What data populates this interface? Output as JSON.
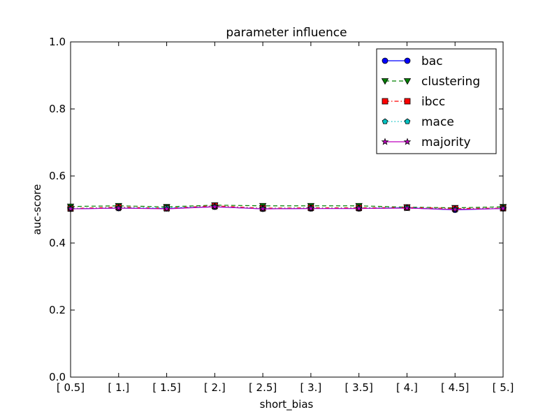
{
  "chart_data": {
    "type": "line",
    "title": "parameter influence",
    "xlabel": "short_bias",
    "ylabel": "auc-score",
    "ylim": [
      0,
      1
    ],
    "yticks": [
      "0.0",
      "0.2",
      "0.4",
      "0.6",
      "0.8",
      "1.0"
    ],
    "categories": [
      "[ 0.5]",
      "[ 1.]",
      "[ 1.5]",
      "[ 2.]",
      "[ 2.5]",
      "[ 3.]",
      "[ 3.5]",
      "[ 4.]",
      "[ 4.5]",
      "[ 5.]"
    ],
    "grid": false,
    "legend_position": "top-right",
    "series": [
      {
        "name": "bac",
        "color": "#0000ff",
        "marker": "circle",
        "dash": "solid",
        "values": [
          0.502,
          0.504,
          0.503,
          0.508,
          0.502,
          0.503,
          0.503,
          0.505,
          0.499,
          0.503
        ]
      },
      {
        "name": "clustering",
        "color": "#008000",
        "marker": "triangle-down",
        "dash": "dashed",
        "values": [
          0.509,
          0.511,
          0.508,
          0.513,
          0.511,
          0.511,
          0.511,
          0.507,
          0.505,
          0.508
        ]
      },
      {
        "name": "ibcc",
        "color": "#ff0000",
        "marker": "square",
        "dash": "dashdot",
        "values": [
          0.503,
          0.507,
          0.504,
          0.511,
          0.504,
          0.505,
          0.505,
          0.506,
          0.503,
          0.504
        ]
      },
      {
        "name": "mace",
        "color": "#00bfbf",
        "marker": "pentagon",
        "dash": "dotted",
        "values": [
          0.503,
          0.505,
          0.505,
          0.509,
          0.503,
          0.504,
          0.504,
          0.506,
          0.501,
          0.504
        ]
      },
      {
        "name": "majority",
        "color": "#bf00bf",
        "marker": "star",
        "dash": "solid",
        "values": [
          0.502,
          0.504,
          0.502,
          0.508,
          0.502,
          0.503,
          0.503,
          0.504,
          0.5,
          0.503
        ]
      }
    ]
  }
}
